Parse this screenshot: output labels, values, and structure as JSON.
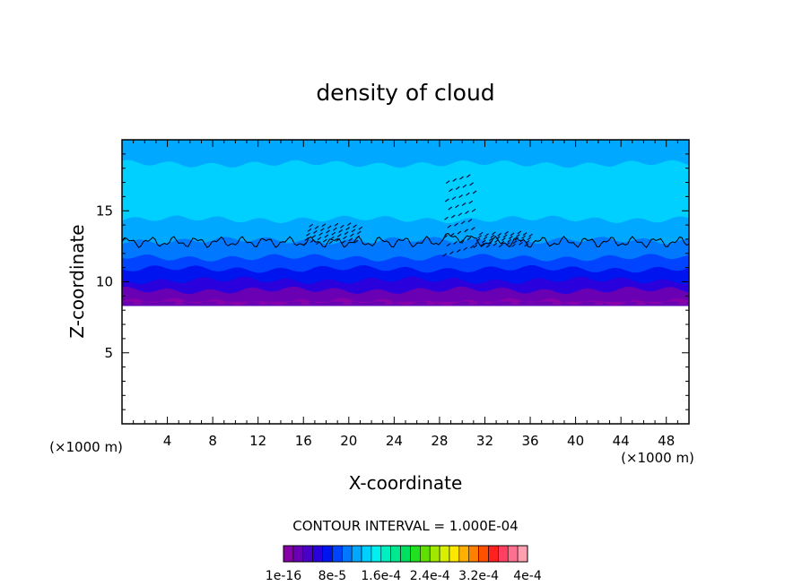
{
  "chart_data": {
    "type": "heatmap",
    "title": "density of cloud",
    "xlabel": "X-coordinate",
    "ylabel": "Z-coordinate",
    "x_unit_left": "(×1000 m)",
    "x_unit_right": "(×1000 m)",
    "xlim": [
      0,
      50
    ],
    "ylim": [
      0,
      20
    ],
    "x_ticks": [
      "4",
      "8",
      "12",
      "16",
      "20",
      "24",
      "28",
      "32",
      "36",
      "40",
      "44",
      "48"
    ],
    "y_ticks": [
      "5",
      "10",
      "15"
    ],
    "contour_interval_text": "CONTOUR INTERVAL = 1.000E-04",
    "colorbar": {
      "labels": [
        "1e-16",
        "8e-5",
        "1.6e-4",
        "2.4e-4",
        "3.2e-4",
        "4e-4"
      ],
      "colors": [
        "#8800aa",
        "#6a00b4",
        "#4b00c8",
        "#2a00dc",
        "#0014f0",
        "#0044ff",
        "#0078ff",
        "#00a8ff",
        "#00d0ff",
        "#00f0f0",
        "#00f0c0",
        "#00e890",
        "#00e060",
        "#20e020",
        "#60e000",
        "#a0e800",
        "#d8f000",
        "#ffe800",
        "#ffb000",
        "#ff8000",
        "#ff5000",
        "#ff2020",
        "#ff4060",
        "#ff7090",
        "#ffa0b0"
      ]
    },
    "layers": [
      {
        "z_top": 8.6,
        "color": "#8800aa"
      },
      {
        "z_top": 9.4,
        "color": "#6a00b4"
      },
      {
        "z_top": 10.1,
        "color": "#2a00dc"
      },
      {
        "z_top": 10.9,
        "color": "#0014f0"
      },
      {
        "z_top": 11.7,
        "color": "#0044ff"
      },
      {
        "z_top": 12.9,
        "color": "#0078ff"
      },
      {
        "z_top": 14.4,
        "color": "#00a8ff"
      },
      {
        "z_top": 18.3,
        "color": "#00d0ff"
      },
      {
        "z_top": 20.0,
        "color": "#00a8ff"
      }
    ],
    "contour_z": 12.8
  }
}
